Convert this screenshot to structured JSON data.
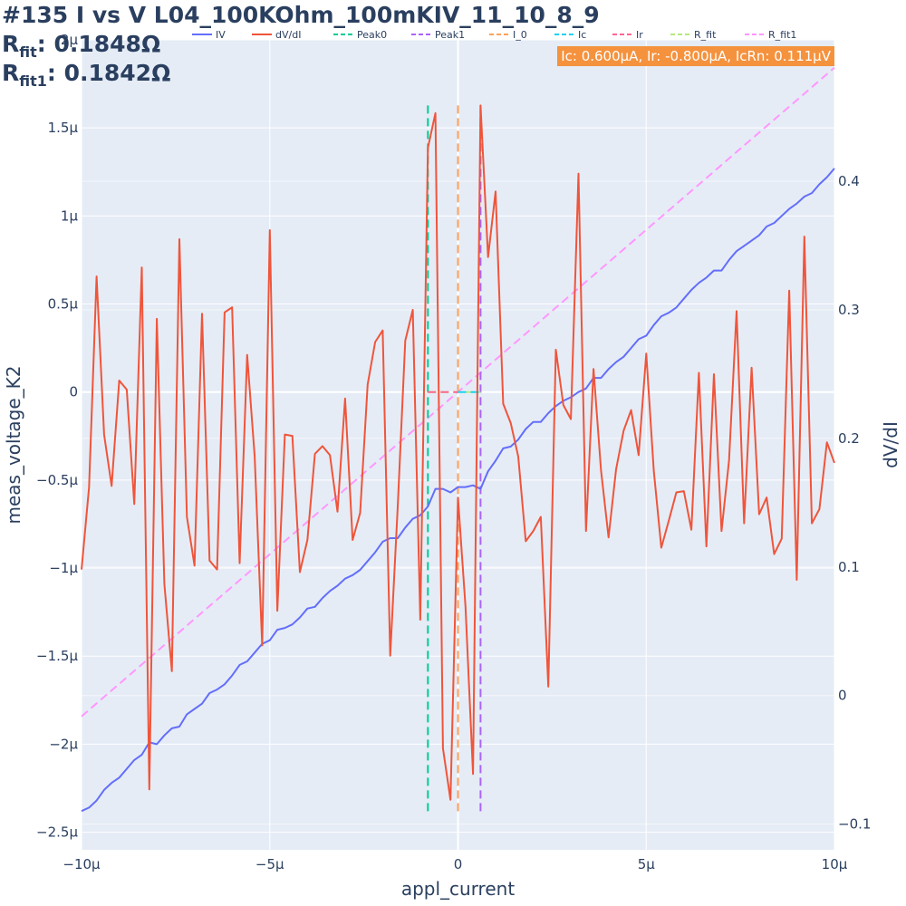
{
  "title": {
    "line1": "#135 I vs V L04_100KOhm_100mKIV_11_10_8_9",
    "rfit_label": "R",
    "rfit_sub": "fit",
    "rfit_value": ": 0.1848Ω",
    "rfit1_label": "R",
    "rfit1_sub": "fit1",
    "rfit1_value": ": 0.1842Ω"
  },
  "annotation": "Ic: 0.600μA, Ir: -0.800μA, IcRn: 0.111μV",
  "colors": {
    "plot_bg": "#e5ecf6",
    "grid": "#ffffff",
    "text": "#2a3f5f",
    "iv": "#636efa",
    "dvdi": "#ef553b",
    "peak0": "#00cc96",
    "peak1": "#ab63fa",
    "i0": "#ffa15a",
    "ic": "#19d3f3",
    "ir": "#ff6692",
    "rfit": "#b6e880",
    "rfit1": "#ff97ff"
  },
  "chart_data": {
    "type": "line",
    "xlabel": "appl_current",
    "ylabel": "meas_voltage_K2",
    "y2label": "dV/dI",
    "xlim": [
      -1e-05,
      1e-05
    ],
    "ylim": [
      -2.6e-06,
      2e-06
    ],
    "y2lim": [
      -0.12,
      0.51
    ],
    "x_ticks": [
      -1e-05,
      -5e-06,
      0,
      5e-06,
      1e-05
    ],
    "x_tick_labels": [
      "−10μ",
      "−5μ",
      "0",
      "5μ",
      "10μ"
    ],
    "y_ticks": [
      -2.5e-06,
      -2e-06,
      -1.5e-06,
      -1e-06,
      -5e-07,
      0,
      5e-07,
      1e-06,
      1.5e-06,
      2e-06
    ],
    "y_tick_labels": [
      "−2.5μ",
      "−2μ",
      "−1.5μ",
      "−1μ",
      "−0.5μ",
      "0",
      "0.5μ",
      "1μ",
      "1.5μ",
      "2μ"
    ],
    "y2_ticks": [
      -0.1,
      0,
      0.1,
      0.2,
      0.3,
      0.4
    ],
    "y2_tick_labels": [
      "−0.1",
      "0",
      "0.1",
      "0.2",
      "0.3",
      "0.4"
    ],
    "legend": {
      "placement": "top",
      "entries": [
        {
          "name": "IV",
          "dash": "solid",
          "color_key": "iv"
        },
        {
          "name": "dV/dI",
          "dash": "solid",
          "color_key": "dvdi"
        },
        {
          "name": "Peak0",
          "dash": "dash",
          "color_key": "peak0"
        },
        {
          "name": "Peak1",
          "dash": "dash",
          "color_key": "peak1"
        },
        {
          "name": "I_0",
          "dash": "dash",
          "color_key": "i0"
        },
        {
          "name": "Ic",
          "dash": "dash",
          "color_key": "ic"
        },
        {
          "name": "Ir",
          "dash": "dash",
          "color_key": "ir"
        },
        {
          "name": "R_fit",
          "dash": "dash",
          "color_key": "rfit"
        },
        {
          "name": "R_fit1",
          "dash": "dash",
          "color_key": "rfit1"
        }
      ]
    },
    "series": [
      {
        "name": "IV",
        "axis": "y",
        "x": [
          -1e-05,
          -9.8e-06,
          -9.6e-06,
          -9.4e-06,
          -9.2e-06,
          -9e-06,
          -8.8e-06,
          -8.6e-06,
          -8.4e-06,
          -8.2e-06,
          -8e-06,
          -7.8e-06,
          -7.6e-06,
          -7.4e-06,
          -7.2e-06,
          -7e-06,
          -6.8e-06,
          -6.6e-06,
          -6.4e-06,
          -6.2e-06,
          -6e-06,
          -5.8e-06,
          -5.6e-06,
          -5.4e-06,
          -5.2e-06,
          -5e-06,
          -4.8e-06,
          -4.6e-06,
          -4.4e-06,
          -4.2e-06,
          -4e-06,
          -3.8e-06,
          -3.6e-06,
          -3.4e-06,
          -3.2e-06,
          -3e-06,
          -2.8e-06,
          -2.6e-06,
          -2.4e-06,
          -2.2e-06,
          -2e-06,
          -1.8e-06,
          -1.6e-06,
          -1.4e-06,
          -1.2e-06,
          -1e-06,
          -8e-07,
          -6e-07,
          -4e-07,
          -2e-07,
          0,
          2e-07,
          4e-07,
          6e-07,
          8e-07,
          1e-06,
          1.2e-06,
          1.4e-06,
          1.6e-06,
          1.8e-06,
          2e-06,
          2.2e-06,
          2.4e-06,
          2.6e-06,
          2.8e-06,
          3e-06,
          3.2e-06,
          3.4e-06,
          3.6e-06,
          3.8e-06,
          4e-06,
          4.2e-06,
          4.4e-06,
          4.6e-06,
          4.8e-06,
          5e-06,
          5.2e-06,
          5.4e-06,
          5.6e-06,
          5.8e-06,
          6e-06,
          6.2e-06,
          6.4e-06,
          6.6e-06,
          6.8e-06,
          7e-06,
          7.2e-06,
          7.4e-06,
          7.6e-06,
          7.8e-06,
          8e-06,
          8.2e-06,
          8.4e-06,
          8.6e-06,
          8.8e-06,
          9e-06,
          9.2e-06,
          9.4e-06,
          9.6e-06,
          9.8e-06,
          1e-05
        ],
        "y": [
          -2.38e-06,
          -2.36e-06,
          -2.32e-06,
          -2.26e-06,
          -2.22e-06,
          -2.19e-06,
          -2.14e-06,
          -2.09e-06,
          -2.06e-06,
          -1.99e-06,
          -2e-06,
          -1.95e-06,
          -1.91e-06,
          -1.9e-06,
          -1.83e-06,
          -1.8e-06,
          -1.77e-06,
          -1.71e-06,
          -1.69e-06,
          -1.66e-06,
          -1.61e-06,
          -1.55e-06,
          -1.53e-06,
          -1.48e-06,
          -1.43e-06,
          -1.41e-06,
          -1.35e-06,
          -1.34e-06,
          -1.32e-06,
          -1.28e-06,
          -1.23e-06,
          -1.22e-06,
          -1.17e-06,
          -1.13e-06,
          -1.1e-06,
          -1.06e-06,
          -1.04e-06,
          -1.01e-06,
          -9.6e-07,
          -9.1e-07,
          -8.5e-07,
          -8.3e-07,
          -8.3e-07,
          -7.7e-07,
          -7.2e-07,
          -7e-07,
          -6.5e-07,
          -5.5e-07,
          -5.5e-07,
          -5.7e-07,
          -5.4e-07,
          -5.4e-07,
          -5.3e-07,
          -5.5e-07,
          -4.5e-07,
          -3.9e-07,
          -3.2e-07,
          -3.1e-07,
          -2.7e-07,
          -2.1e-07,
          -1.7e-07,
          -1.7e-07,
          -1.2e-07,
          -8e-08,
          -5e-08,
          -3e-08,
          0,
          2e-08,
          8e-08,
          8e-08,
          1.3e-07,
          1.7e-07,
          2e-07,
          2.5e-07,
          3e-07,
          3.2e-07,
          3.8e-07,
          4.3e-07,
          4.5e-07,
          4.8e-07,
          5.3e-07,
          5.8e-07,
          6.2e-07,
          6.5e-07,
          6.9e-07,
          6.9e-07,
          7.5e-07,
          8e-07,
          8.3e-07,
          8.6e-07,
          8.9e-07,
          9.4e-07,
          9.6e-07,
          1e-06,
          1.04e-06,
          1.07e-06,
          1.11e-06,
          1.13e-06,
          1.18e-06,
          1.22e-06,
          1.27e-06
        ]
      },
      {
        "name": "dV/dI",
        "axis": "y2",
        "x": [
          -1e-05,
          -9.8e-06,
          -9.6e-06,
          -9.4e-06,
          -9.2e-06,
          -9e-06,
          -8.8e-06,
          -8.6e-06,
          -8.4e-06,
          -8.2e-06,
          -8e-06,
          -7.8e-06,
          -7.6e-06,
          -7.4e-06,
          -7.2e-06,
          -7e-06,
          -6.8e-06,
          -6.6e-06,
          -6.4e-06,
          -6.2e-06,
          -6e-06,
          -5.8e-06,
          -5.6e-06,
          -5.4e-06,
          -5.2e-06,
          -5e-06,
          -4.8e-06,
          -4.6e-06,
          -4.4e-06,
          -4.2e-06,
          -4e-06,
          -3.8e-06,
          -3.6e-06,
          -3.4e-06,
          -3.2e-06,
          -3e-06,
          -2.8e-06,
          -2.6e-06,
          -2.4e-06,
          -2.2e-06,
          -2e-06,
          -1.8e-06,
          -1.6e-06,
          -1.4e-06,
          -1.2e-06,
          -1e-06,
          -8e-07,
          -6e-07,
          -4e-07,
          -2e-07,
          0,
          2e-07,
          4e-07,
          6e-07,
          8e-07,
          1e-06,
          1.2e-06,
          1.4e-06,
          1.6e-06,
          1.8e-06,
          2e-06,
          2.2e-06,
          2.4e-06,
          2.6e-06,
          2.8e-06,
          3e-06,
          3.2e-06,
          3.4e-06,
          3.6e-06,
          3.8e-06,
          4e-06,
          4.2e-06,
          4.4e-06,
          4.6e-06,
          4.8e-06,
          5e-06,
          5.2e-06,
          5.4e-06,
          5.6e-06,
          5.8e-06,
          6e-06,
          6.2e-06,
          6.4e-06,
          6.6e-06,
          6.8e-06,
          7e-06,
          7.2e-06,
          7.4e-06,
          7.6e-06,
          7.8e-06,
          8e-06,
          8.2e-06,
          8.4e-06,
          8.6e-06,
          8.8e-06,
          9e-06,
          9.2e-06,
          9.4e-06,
          9.6e-06,
          9.8e-06,
          1e-05
        ],
        "y": [
          0.098,
          0.162,
          0.326,
          0.203,
          0.163,
          0.245,
          0.238,
          0.149,
          0.333,
          -0.073,
          0.293,
          0.087,
          0.019,
          0.355,
          0.139,
          0.101,
          0.297,
          0.105,
          0.098,
          0.298,
          0.302,
          0.103,
          0.265,
          0.186,
          0.039,
          0.362,
          0.066,
          0.203,
          0.202,
          0.096,
          0.121,
          0.188,
          0.194,
          0.187,
          0.143,
          0.231,
          0.121,
          0.142,
          0.242,
          0.275,
          0.284,
          0.031,
          0.147,
          0.276,
          0.3,
          0.059,
          0.426,
          0.453,
          -0.041,
          -0.081,
          0.154,
          0.069,
          -0.061,
          0.459,
          0.341,
          0.392,
          0.227,
          0.212,
          0.186,
          0.12,
          0.128,
          0.139,
          0.007,
          0.269,
          0.226,
          0.215,
          0.406,
          0.128,
          0.254,
          0.175,
          0.123,
          0.176,
          0.206,
          0.222,
          0.187,
          0.266,
          0.175,
          0.115,
          0.136,
          0.158,
          0.159,
          0.129,
          0.251,
          0.116,
          0.25,
          0.128,
          0.183,
          0.299,
          0.134,
          0.255,
          0.141,
          0.154,
          0.11,
          0.122,
          0.315,
          0.09,
          0.357,
          0.134,
          0.145,
          0.197,
          0.181
        ]
      },
      {
        "name": "Peak0",
        "axis": "y2",
        "x": [
          -8e-07,
          -8e-07
        ],
        "y": [
          -0.09,
          0.459
        ]
      },
      {
        "name": "Peak1",
        "axis": "y2",
        "x": [
          6e-07,
          6e-07
        ],
        "y": [
          -0.09,
          0.459
        ]
      },
      {
        "name": "I_0",
        "axis": "y2",
        "x": [
          0,
          0
        ],
        "y": [
          -0.09,
          0.459
        ]
      },
      {
        "name": "Ic",
        "axis": "y",
        "x": [
          0,
          6e-07
        ],
        "y": [
          0,
          0
        ]
      },
      {
        "name": "Ir",
        "axis": "y",
        "x": [
          -8e-07,
          0
        ],
        "y": [
          0,
          0
        ]
      },
      {
        "name": "R_fit",
        "axis": "y",
        "x": [
          -8e-07,
          6e-07
        ],
        "y": [
          0,
          0
        ]
      },
      {
        "name": "R_fit1",
        "axis": "y",
        "x": [
          -1e-05,
          1e-05
        ],
        "y": [
          -1.842e-06,
          1.842e-06
        ]
      }
    ]
  }
}
